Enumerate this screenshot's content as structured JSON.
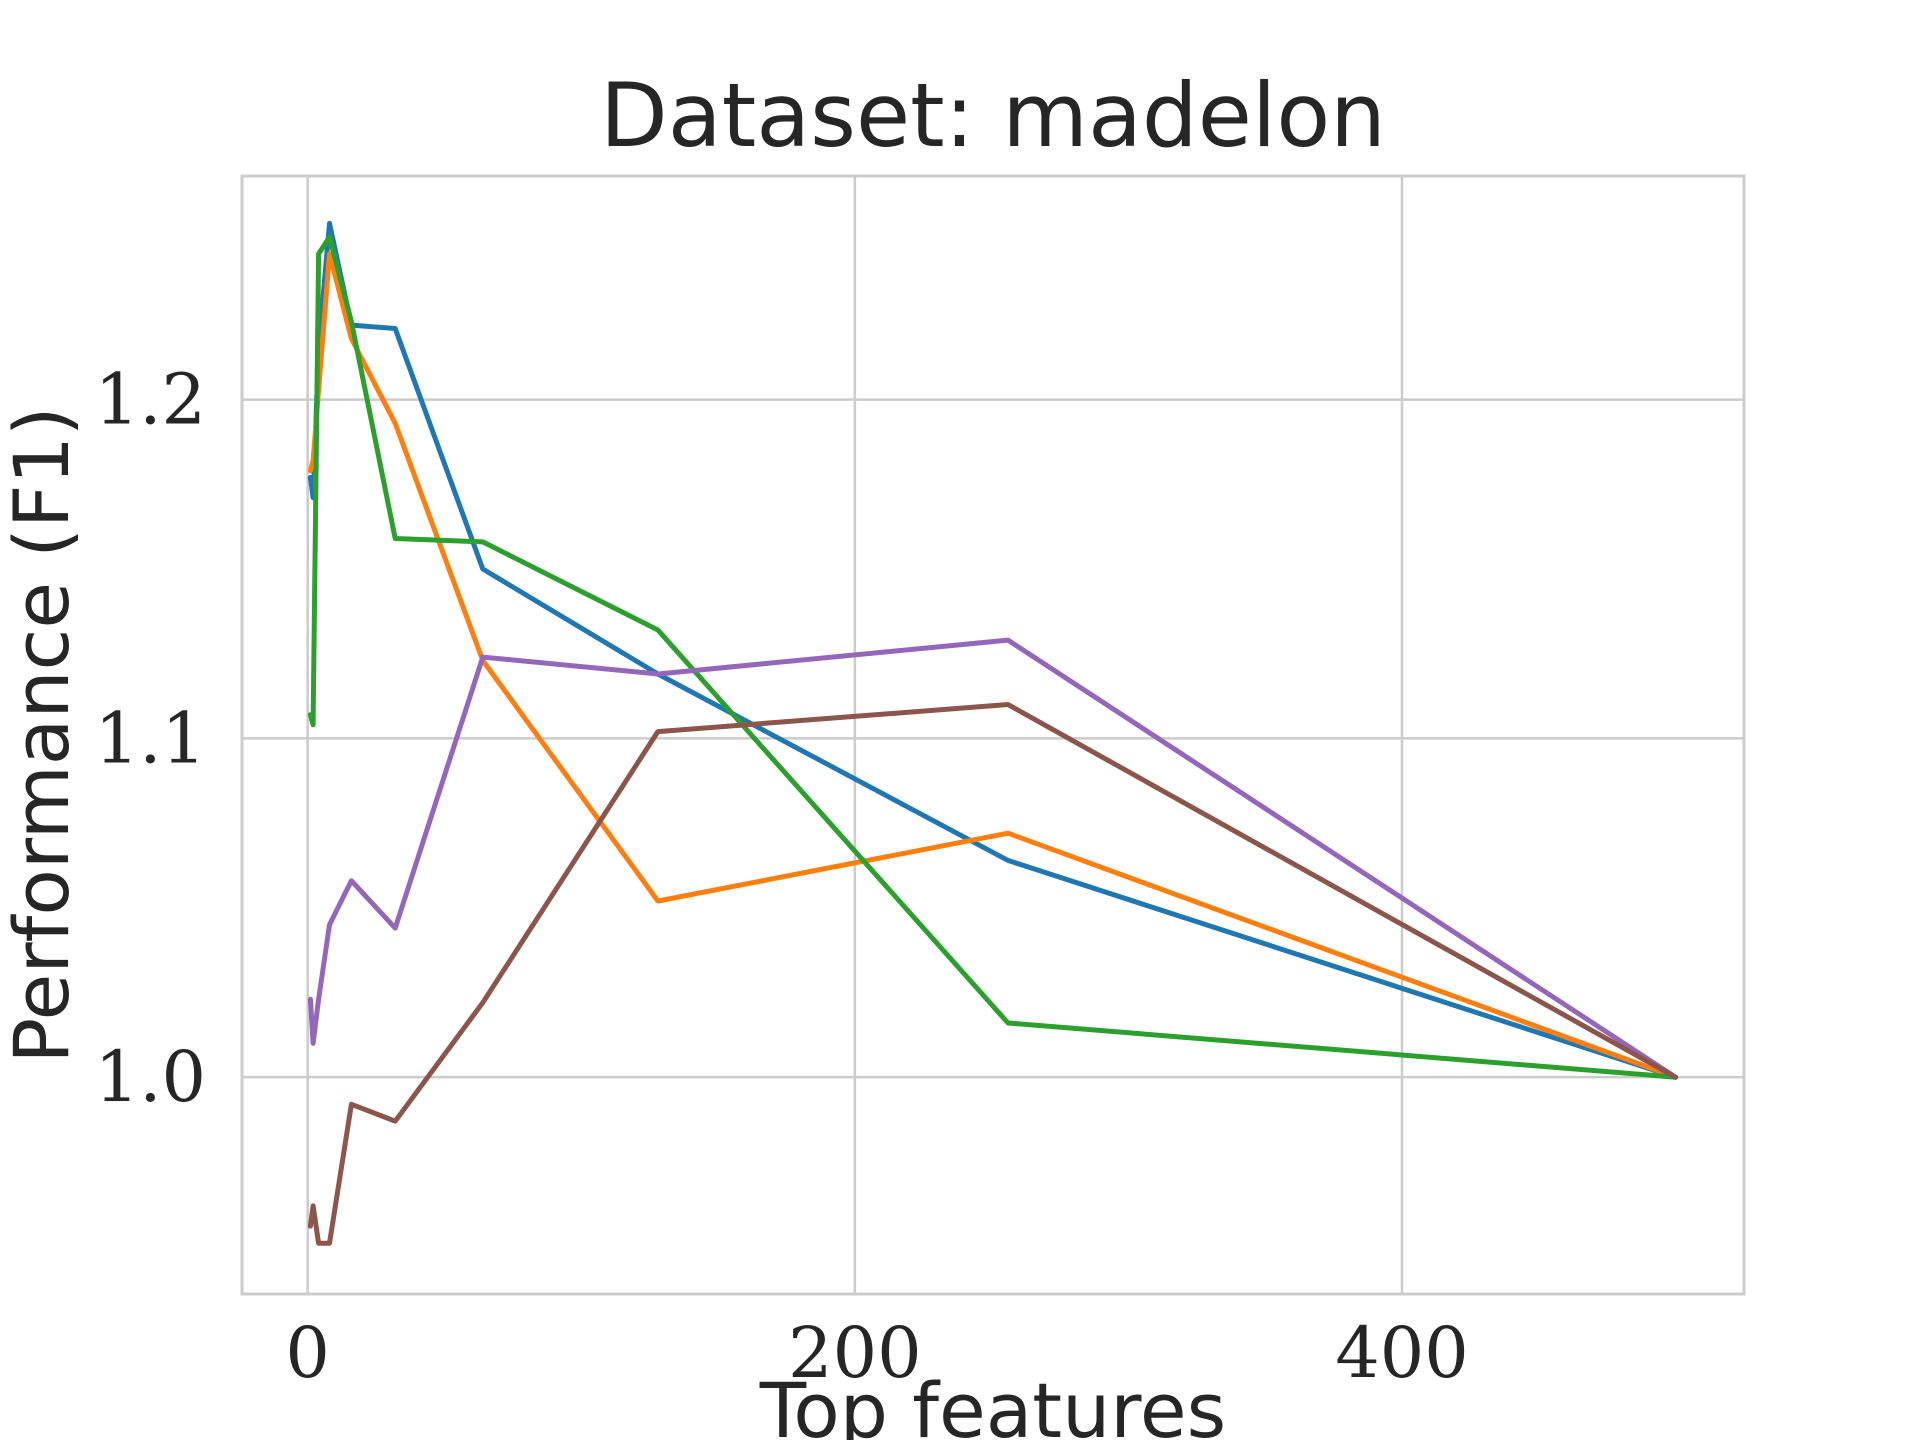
{
  "chart_data": {
    "type": "line",
    "title": "Dataset: madelon",
    "xlabel": "Top features",
    "ylabel": "Performance (F1)",
    "xlim": [
      -24,
      525
    ],
    "ylim": [
      0.936,
      1.266
    ],
    "xticks": [
      0,
      200,
      400
    ],
    "xtick_labels": [
      "0",
      "200",
      "400"
    ],
    "yticks": [
      1.0,
      1.1,
      1.2
    ],
    "ytick_labels": [
      "1.0",
      "1.1",
      "1.2"
    ],
    "grid": true,
    "legend": "none",
    "series": [
      {
        "color": "#1f77b4",
        "x": [
          1,
          2,
          4,
          8,
          16,
          32,
          64,
          128,
          256,
          500
        ],
        "y": [
          1.177,
          1.171,
          1.215,
          1.252,
          1.222,
          1.221,
          1.15,
          1.119,
          1.064,
          1.0
        ]
      },
      {
        "color": "#ff7f0e",
        "x": [
          1,
          2,
          4,
          8,
          16,
          32,
          64,
          128,
          256,
          500
        ],
        "y": [
          1.179,
          1.182,
          1.203,
          1.243,
          1.218,
          1.193,
          1.123,
          1.052,
          1.072,
          1.0
        ]
      },
      {
        "color": "#2ca02c",
        "x": [
          1,
          2,
          4,
          8,
          16,
          32,
          64,
          128,
          256,
          500
        ],
        "y": [
          1.107,
          1.104,
          1.243,
          1.248,
          1.223,
          1.159,
          1.158,
          1.132,
          1.016,
          1.0
        ]
      },
      {
        "color": "#9467bd",
        "x": [
          1,
          2,
          4,
          8,
          16,
          32,
          64,
          128,
          256,
          500
        ],
        "y": [
          1.023,
          1.01,
          1.023,
          1.045,
          1.058,
          1.044,
          1.124,
          1.119,
          1.129,
          1.0
        ]
      },
      {
        "color": "#8c564b",
        "x": [
          1,
          2,
          4,
          8,
          16,
          32,
          64,
          128,
          256,
          500
        ],
        "y": [
          0.956,
          0.962,
          0.951,
          0.951,
          0.992,
          0.987,
          1.022,
          1.102,
          1.11,
          1.0
        ]
      }
    ]
  }
}
